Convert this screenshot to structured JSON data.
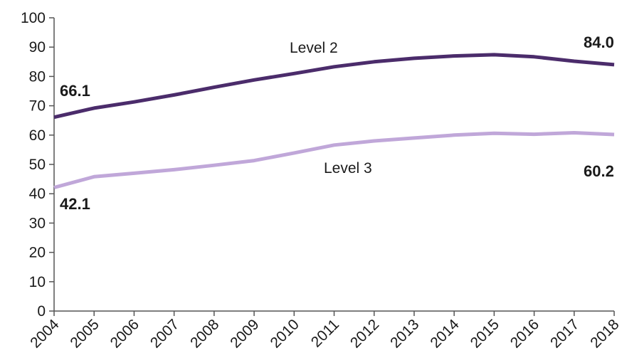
{
  "chart_data": {
    "type": "line",
    "x": [
      "2004",
      "2005",
      "2006",
      "2007",
      "2008",
      "2009",
      "2010",
      "2011",
      "2012",
      "2013",
      "2014",
      "2015",
      "2016",
      "2017",
      "2018"
    ],
    "ylim": [
      0,
      100
    ],
    "yticks": [
      0,
      10,
      20,
      30,
      40,
      50,
      60,
      70,
      80,
      90,
      100
    ],
    "grid": false,
    "legend": "none",
    "series": [
      {
        "name": "Level 2",
        "color": "#4b2c6b",
        "values": [
          66.1,
          69.2,
          71.3,
          73.7,
          76.3,
          78.8,
          81.0,
          83.3,
          85.0,
          86.2,
          87.0,
          87.4,
          86.7,
          85.2,
          84.0
        ]
      },
      {
        "name": "Level 3",
        "color": "#c0a7d9",
        "values": [
          42.1,
          45.8,
          47.0,
          48.2,
          49.7,
          51.3,
          53.9,
          56.6,
          58.0,
          59.0,
          60.0,
          60.6,
          60.3,
          60.8,
          60.2
        ]
      }
    ],
    "data_labels": {
      "level2_start": "66.1",
      "level2_end": "84.0",
      "level3_start": "42.1",
      "level3_end": "60.2"
    }
  }
}
